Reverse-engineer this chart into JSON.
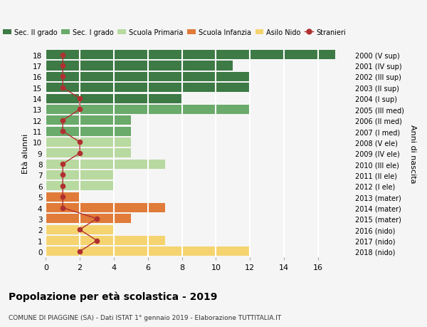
{
  "ages": [
    18,
    17,
    16,
    15,
    14,
    13,
    12,
    11,
    10,
    9,
    8,
    7,
    6,
    5,
    4,
    3,
    2,
    1,
    0
  ],
  "right_labels_top_to_bottom": [
    "2000 (V sup)",
    "2001 (IV sup)",
    "2002 (III sup)",
    "2003 (II sup)",
    "2004 (I sup)",
    "2005 (III med)",
    "2006 (II med)",
    "2007 (I med)",
    "2008 (V ele)",
    "2009 (IV ele)",
    "2010 (III ele)",
    "2011 (II ele)",
    "2012 (I ele)",
    "2013 (mater)",
    "2014 (mater)",
    "2015 (mater)",
    "2016 (nido)",
    "2017 (nido)",
    "2018 (nido)"
  ],
  "bar_values": [
    17,
    11,
    12,
    12,
    8,
    12,
    5,
    5,
    5,
    5,
    7,
    4,
    4,
    2,
    7,
    5,
    4,
    7,
    12
  ],
  "bar_colors": [
    "#3d7a45",
    "#3d7a45",
    "#3d7a45",
    "#3d7a45",
    "#3d7a45",
    "#6aaa6a",
    "#6aaa6a",
    "#6aaa6a",
    "#b8d9a0",
    "#b8d9a0",
    "#b8d9a0",
    "#b8d9a0",
    "#b8d9a0",
    "#e07b39",
    "#e07b39",
    "#e07b39",
    "#f5d470",
    "#f5d470",
    "#f5d470"
  ],
  "stranieri_values_top_to_bottom": [
    1,
    1,
    1,
    1,
    2,
    2,
    1,
    1,
    2,
    2,
    1,
    1,
    1,
    1,
    1,
    3,
    2,
    3,
    2
  ],
  "stranieri_color": "#b03030",
  "legend_labels": [
    "Sec. II grado",
    "Sec. I grado",
    "Scuola Primaria",
    "Scuola Infanzia",
    "Asilo Nido",
    "Stranieri"
  ],
  "legend_colors": [
    "#3d7a45",
    "#6aaa6a",
    "#b8d9a0",
    "#e07b39",
    "#f5d470",
    "#b03030"
  ],
  "ylabel_left": "Età alunni",
  "ylabel_right": "Anni di nascita",
  "title": "Popolazione per età scolastica - 2019",
  "subtitle": "COMUNE DI PIAGGINE (SA) - Dati ISTAT 1° gennaio 2019 - Elaborazione TUTTITALIA.IT",
  "xlim": [
    0,
    18
  ],
  "xticks": [
    0,
    2,
    4,
    6,
    8,
    10,
    12,
    14,
    16
  ],
  "background_color": "#f5f5f5",
  "grid_color": "#ffffff"
}
